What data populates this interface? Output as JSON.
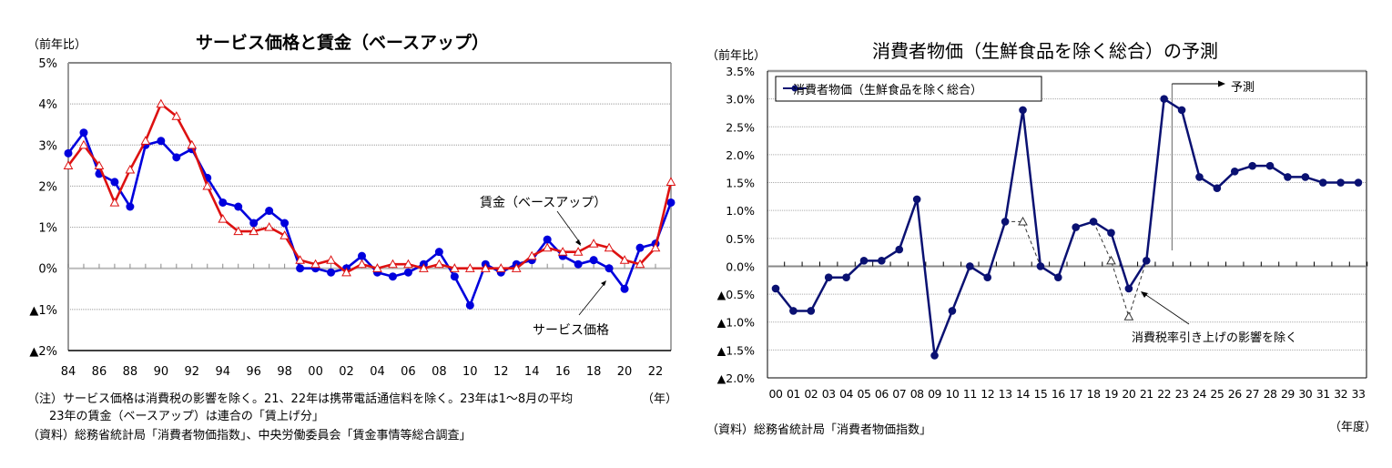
{
  "chart_data": [
    {
      "type": "line",
      "title": "サービス価格と賃金（ベースアップ）",
      "ylabel": "（前年比）",
      "xlabel": "（年）",
      "ylim": [
        -2,
        5
      ],
      "yticks": [
        5,
        4,
        3,
        2,
        1,
        0,
        -1,
        -2
      ],
      "ytick_labels": [
        "5%",
        "4%",
        "3%",
        "2%",
        "1%",
        "0%",
        "▲1%",
        "▲2%"
      ],
      "x": [
        84,
        85,
        86,
        87,
        88,
        89,
        90,
        91,
        92,
        93,
        94,
        95,
        96,
        97,
        98,
        99,
        0,
        1,
        2,
        3,
        4,
        5,
        6,
        7,
        8,
        9,
        10,
        11,
        12,
        13,
        14,
        15,
        16,
        17,
        18,
        19,
        20,
        21,
        22,
        23
      ],
      "xtick_labels": [
        "84",
        "86",
        "88",
        "90",
        "92",
        "94",
        "96",
        "98",
        "00",
        "02",
        "04",
        "06",
        "08",
        "10",
        "12",
        "14",
        "16",
        "18",
        "20",
        "22"
      ],
      "grid": true,
      "series": [
        {
          "name": "サービス価格",
          "color": "#0000dd",
          "marker": "circle",
          "values": [
            2.8,
            3.3,
            2.3,
            2.1,
            1.5,
            3.0,
            3.1,
            2.7,
            2.9,
            2.2,
            1.6,
            1.5,
            1.1,
            1.4,
            1.1,
            0.0,
            0.0,
            -0.1,
            0.0,
            0.3,
            -0.1,
            -0.2,
            -0.1,
            0.1,
            0.4,
            -0.2,
            -0.9,
            0.1,
            -0.1,
            0.1,
            0.2,
            0.7,
            0.3,
            0.1,
            0.2,
            0.0,
            -0.5,
            0.5,
            0.6,
            1.6
          ]
        },
        {
          "name": "賃金（ベースアップ）",
          "color": "#dd1111",
          "marker": "triangle",
          "values": [
            2.5,
            3.0,
            2.5,
            1.6,
            2.4,
            3.1,
            4.0,
            3.7,
            3.0,
            2.0,
            1.2,
            0.9,
            0.9,
            1.0,
            0.8,
            0.2,
            0.1,
            0.2,
            -0.1,
            0.1,
            0.0,
            0.1,
            0.1,
            0.0,
            0.1,
            0.0,
            0.0,
            0.0,
            0.0,
            0.0,
            0.3,
            0.5,
            0.4,
            0.4,
            0.6,
            0.5,
            0.2,
            0.1,
            0.5,
            2.1
          ]
        }
      ],
      "annotations": [
        {
          "text": "賃金（ベースアップ）",
          "points_to_series": "賃金（ベースアップ）",
          "at_x": 17
        },
        {
          "text": "サービス価格",
          "points_to_series": "サービス価格",
          "at_x": 19
        }
      ]
    },
    {
      "type": "line",
      "title": "消費者物価（生鮮食品を除く総合）の予測",
      "ylabel": "（前年比）",
      "xlabel": "（年度）",
      "ylim": [
        -2.0,
        3.5
      ],
      "yticks": [
        3.5,
        3.0,
        2.5,
        2.0,
        1.5,
        1.0,
        0.5,
        0.0,
        -0.5,
        -1.0,
        -1.5,
        -2.0
      ],
      "ytick_labels": [
        "3.5%",
        "3.0%",
        "2.5%",
        "2.0%",
        "1.5%",
        "1.0%",
        "0.5%",
        "0.0%",
        "▲0.5%",
        "▲1.0%",
        "▲1.5%",
        "▲2.0%"
      ],
      "x": [
        0,
        1,
        2,
        3,
        4,
        5,
        6,
        7,
        8,
        9,
        10,
        11,
        12,
        13,
        14,
        15,
        16,
        17,
        18,
        19,
        20,
        21,
        22,
        23,
        24,
        25,
        26,
        27,
        28,
        29,
        30,
        31,
        32,
        33
      ],
      "xtick_labels": [
        "00",
        "01",
        "02",
        "03",
        "04",
        "05",
        "06",
        "07",
        "08",
        "09",
        "10",
        "11",
        "12",
        "13",
        "14",
        "15",
        "16",
        "17",
        "18",
        "19",
        "20",
        "21",
        "22",
        "23",
        "24",
        "25",
        "26",
        "27",
        "28",
        "29",
        "30",
        "31",
        "32",
        "33"
      ],
      "grid": true,
      "legend": {
        "position": "top-left",
        "entries": [
          "消費者物価（生鮮食品を除く総合）"
        ]
      },
      "series": [
        {
          "name": "消費者物価（生鮮食品を除く総合）",
          "color": "#0a1172",
          "marker": "circle",
          "values": [
            -0.4,
            -0.8,
            -0.8,
            -0.2,
            -0.2,
            0.1,
            0.1,
            0.3,
            1.2,
            -1.6,
            -0.8,
            0.0,
            -0.2,
            0.8,
            2.8,
            0.0,
            -0.2,
            0.7,
            0.8,
            0.6,
            -0.4,
            0.1,
            3.0,
            2.8,
            1.6,
            1.4,
            1.7,
            1.8,
            1.8,
            1.6,
            1.6,
            1.5,
            1.5,
            1.5
          ]
        },
        {
          "name": "消費税率引き上げの影響を除く",
          "color": "#333333",
          "marker": "triangle-open",
          "dashed": true,
          "segments": [
            {
              "x": [
                13,
                14,
                15
              ],
              "values": [
                0.8,
                0.8,
                0.0
              ]
            },
            {
              "x": [
                18,
                19,
                20,
                21
              ],
              "values": [
                0.8,
                0.1,
                -0.9,
                0.1
              ]
            }
          ]
        }
      ],
      "forecast_marker": {
        "label": "予測",
        "from_x": 22.5
      },
      "annotations": [
        {
          "text": "消費税率引き上げの影響を除く",
          "points_to": "dashed-series",
          "at_x": 20.5
        }
      ]
    }
  ],
  "left": {
    "title": "サービス価格と賃金（ベースアップ）",
    "yunit": "（前年比）",
    "xunit": "（年）",
    "label_wage": "賃金（ベースアップ）",
    "label_service": "サービス価格",
    "note1": "（注）サービス価格は消費税の影響を除く。21、22年は携帯電話通信料を除く。23年は1～8月の平均",
    "note2": "23年の賃金（ベースアップ）は連合の「賃上げ分」",
    "source": "（資料）総務省統計局「消費者物価指数」、中央労働委員会「賃金事情等総合調査」"
  },
  "right": {
    "title": "消費者物価（生鮮食品を除く総合）の予測",
    "yunit": "（前年比）",
    "xunit": "（年度）",
    "legend_label": "消費者物価（生鮮食品を除く総合）",
    "forecast_label": "予測",
    "tax_label": "消費税率引き上げの影響を除く",
    "source": "（資料）総務省統計局「消費者物価指数」"
  }
}
